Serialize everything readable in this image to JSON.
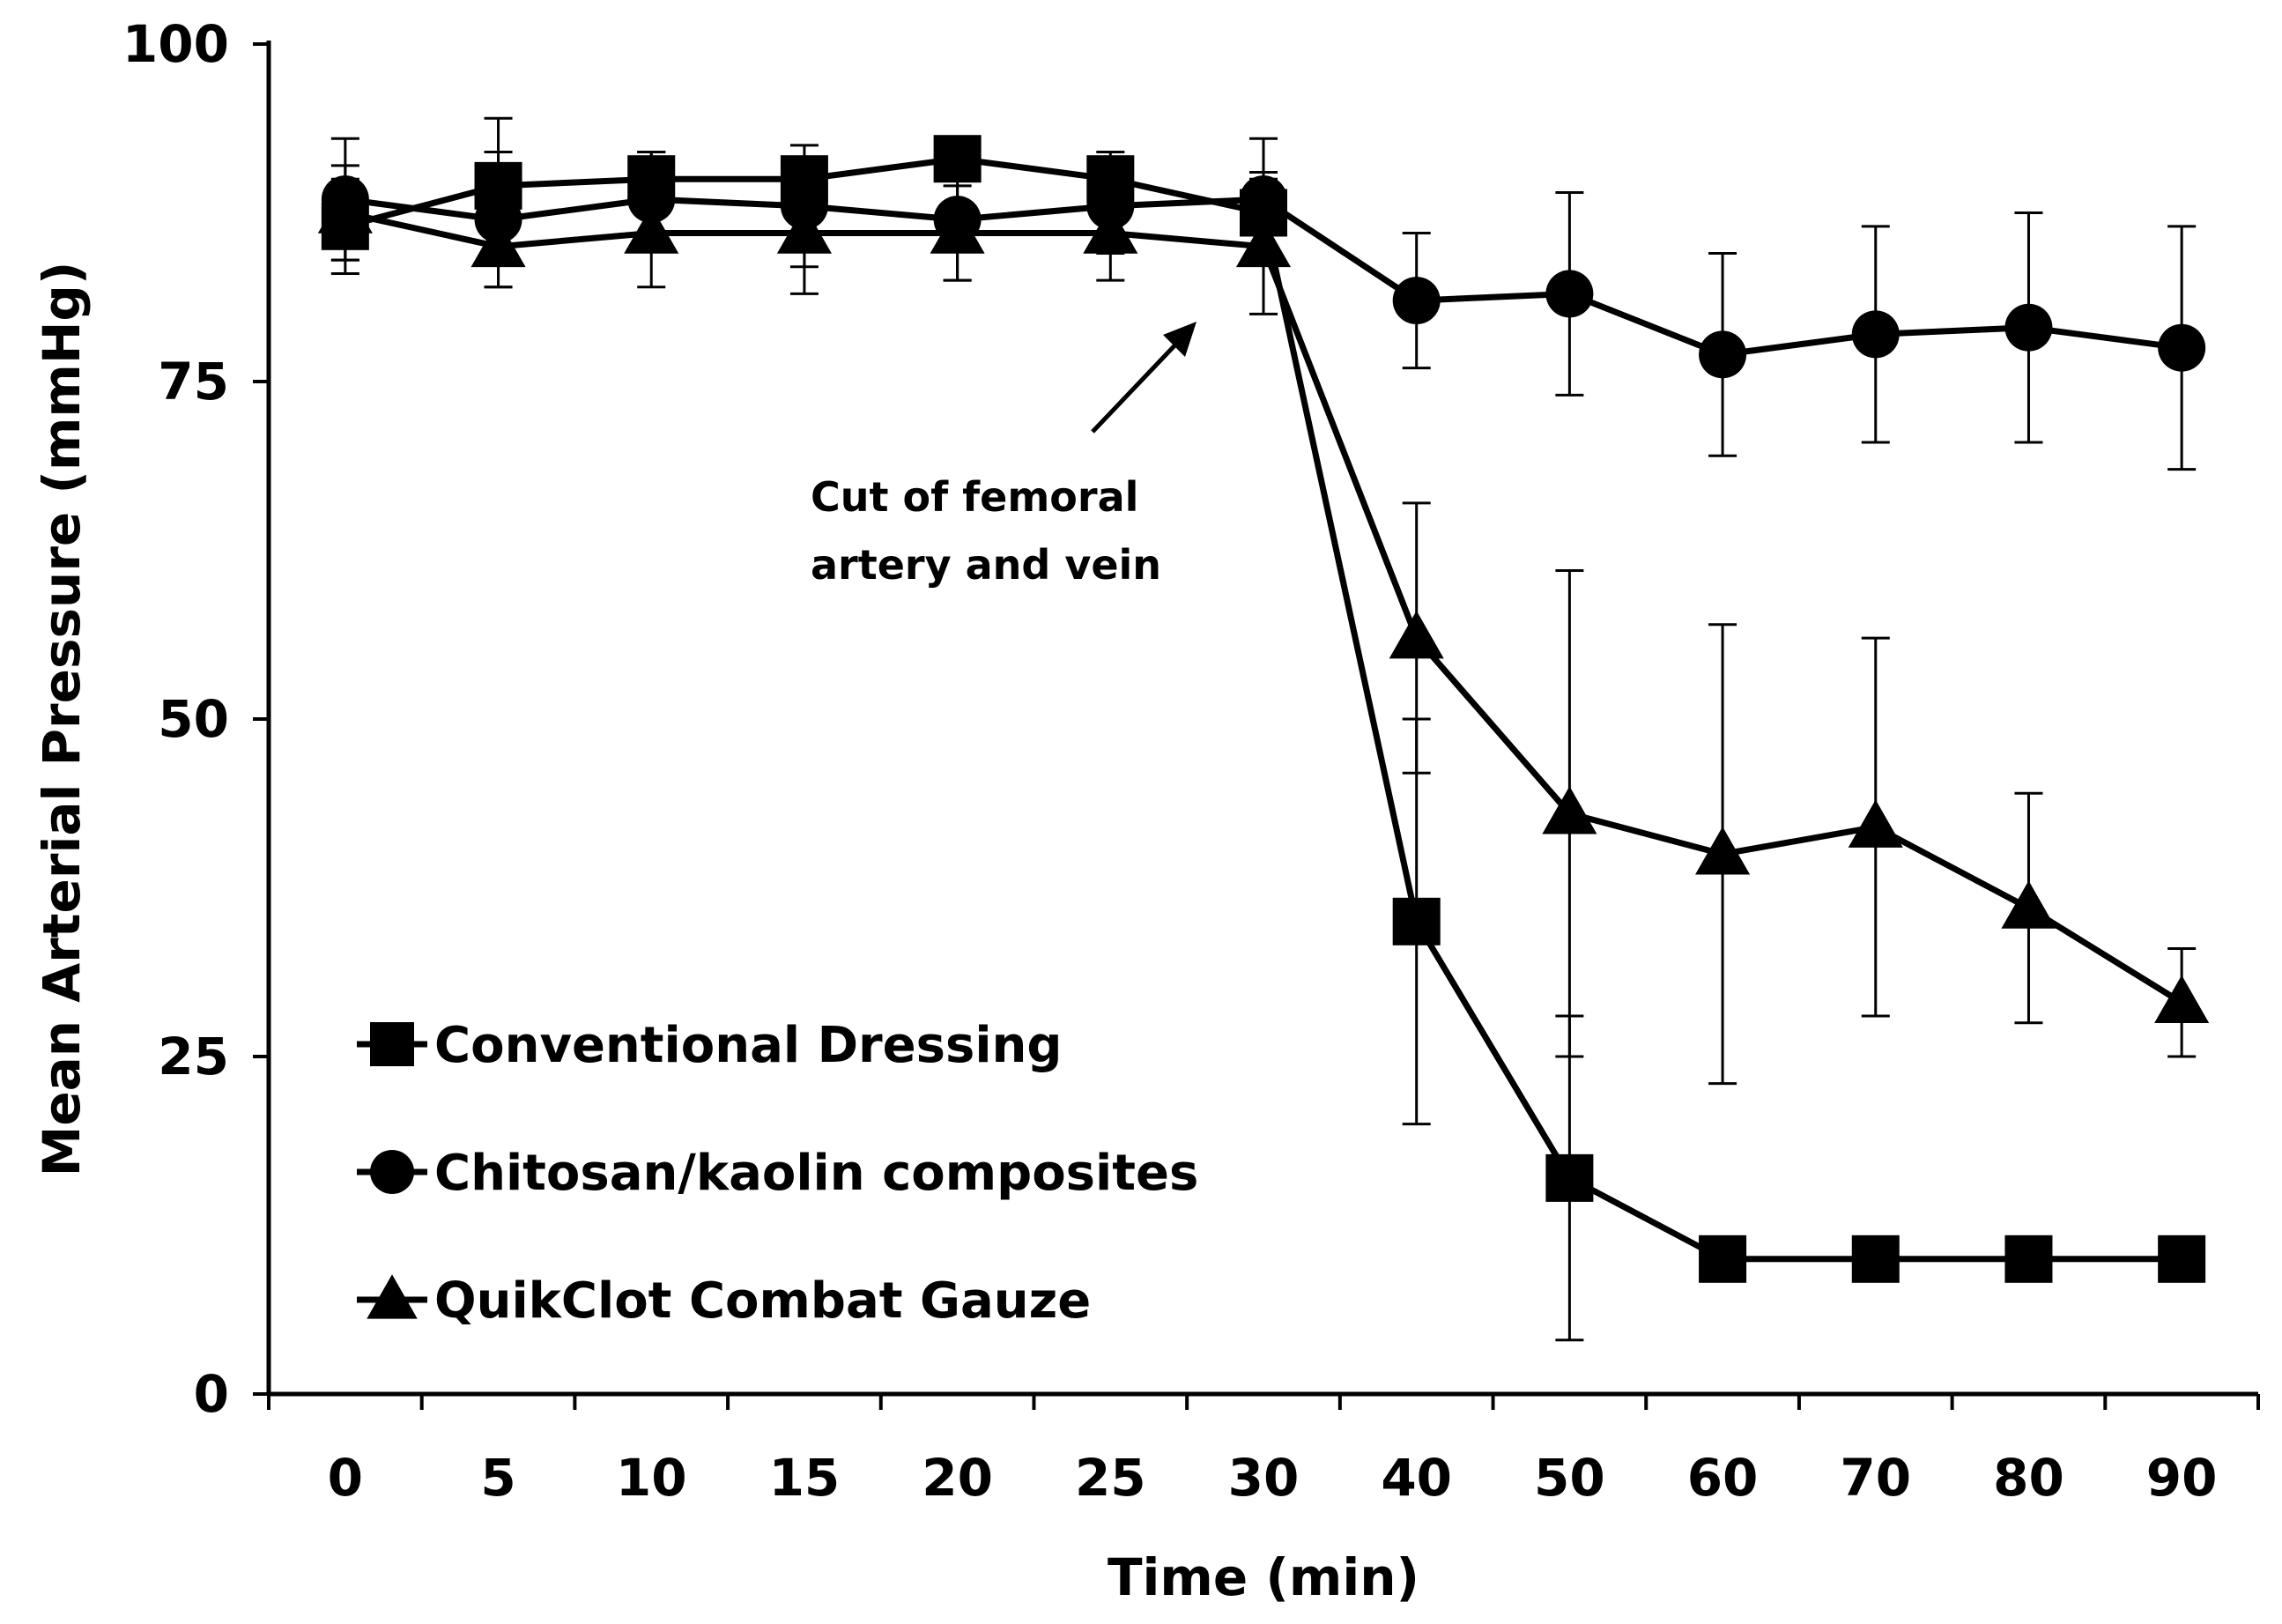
{
  "chart_data": {
    "type": "line",
    "title": "",
    "xlabel": "Time (min)",
    "ylabel": "Mean Arterial Pressure (mmHg)",
    "categories": [
      "0",
      "5",
      "10",
      "15",
      "20",
      "25",
      "30",
      "40",
      "50",
      "60",
      "70",
      "80",
      "90"
    ],
    "ylim": [
      0,
      100
    ],
    "yticks": [
      "0",
      "25",
      "50",
      "75",
      "100"
    ],
    "grid": false,
    "legend_position": "bottom-left",
    "series": [
      {
        "name": "Conventional Dressing",
        "marker": "square",
        "values": [
          86.5,
          89.5,
          90,
          90,
          91.5,
          90,
          87.5,
          35,
          16,
          10,
          10,
          10,
          10
        ],
        "errors": [
          3.5,
          5,
          2,
          1.5,
          1.5,
          2,
          3,
          15,
          12,
          1.5,
          1.5,
          1.5,
          1.5
        ]
      },
      {
        "name": "Chitosan/kaolin composites",
        "marker": "circle",
        "values": [
          88.5,
          87,
          88.5,
          88,
          87,
          88,
          88.5,
          81,
          81.5,
          77,
          78.5,
          79,
          77.5
        ],
        "errors": [
          4.5,
          5,
          3.5,
          4.5,
          4.5,
          3.5,
          4.5,
          5,
          7.5,
          7.5,
          8,
          8.5,
          9
        ]
      },
      {
        "name": "QuikClot Combat Gauze",
        "marker": "triangle",
        "values": [
          87.5,
          85,
          86,
          86,
          86,
          86,
          85,
          56,
          43,
          40,
          42,
          36,
          29
        ],
        "errors": [
          3.5,
          3,
          4,
          4.5,
          3.5,
          3.5,
          5,
          10,
          18,
          17,
          14,
          8.5,
          4
        ]
      }
    ],
    "annotations": [
      {
        "lines": [
          "Cut of femoral",
          "artery and vein"
        ],
        "points_to": "between 25 and 30 min, near 80 mmHg"
      }
    ]
  }
}
